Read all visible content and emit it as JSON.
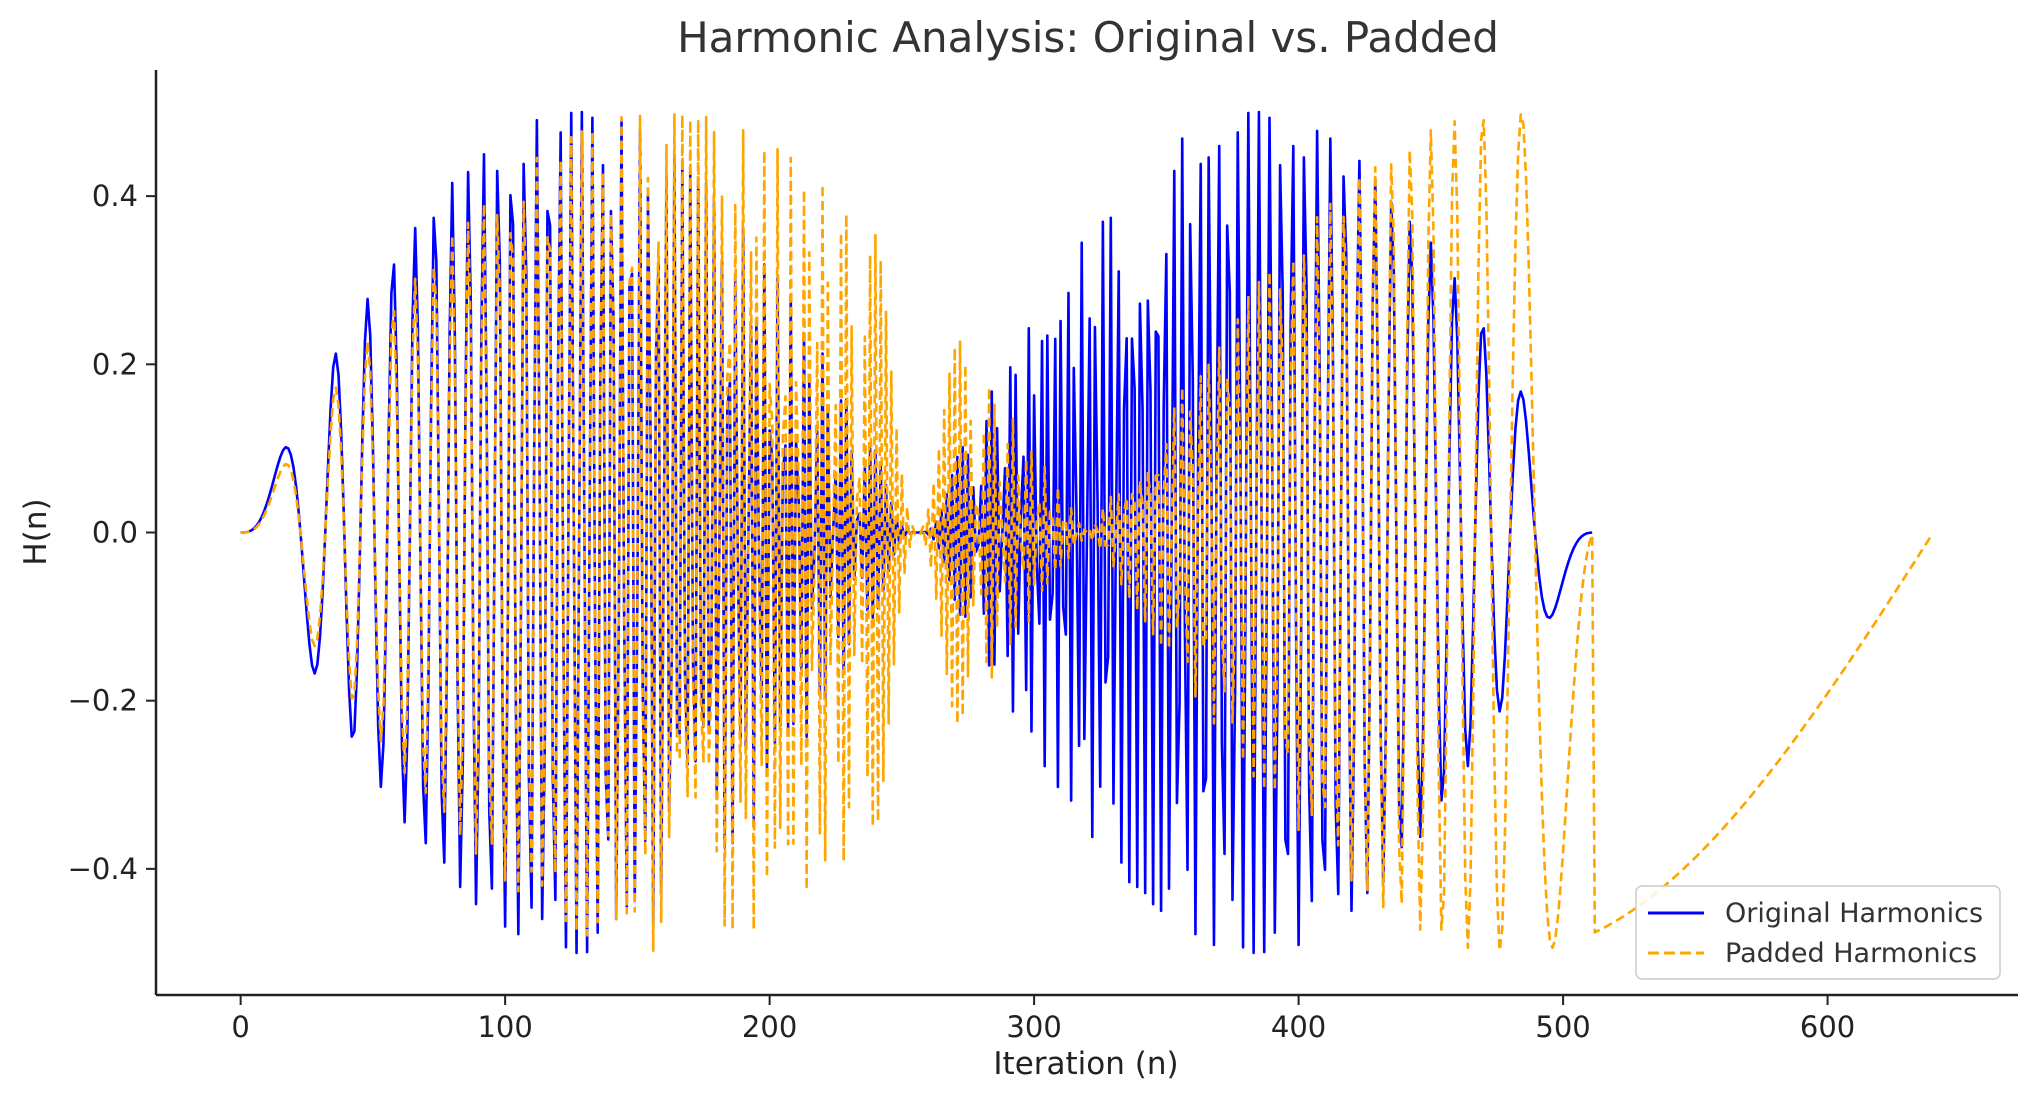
{
  "chart_data": {
    "type": "line",
    "title": "Harmonic Analysis: Original vs. Padded",
    "xlabel": "Iteration (n)",
    "ylabel": "H(n)",
    "xlim": [
      -32,
      672
    ],
    "ylim": [
      -0.55,
      0.55
    ],
    "x_ticks": [
      0,
      100,
      200,
      300,
      400,
      500,
      600
    ],
    "x_tick_labels": [
      "0",
      "100",
      "200",
      "300",
      "400",
      "500",
      "600"
    ],
    "y_ticks": [
      -0.4,
      -0.2,
      0.0,
      0.2,
      0.4
    ],
    "y_tick_labels": [
      "−0.4",
      "−0.2",
      "0.0",
      "0.2",
      "0.4"
    ],
    "grid": false,
    "legend_position": "lower-right",
    "series": [
      {
        "name": "Original Harmonics",
        "color": "#0000ff",
        "style": "solid",
        "n_points": 512,
        "x_range": [
          0,
          511
        ],
        "formula": "H(n) = 0.5 * sin(pi*n/256) * sin(pi*n^2/512)"
      },
      {
        "name": "Padded Harmonics",
        "color": "#ffa500",
        "style": "dashed",
        "n_points": 640,
        "x_range": [
          0,
          639
        ],
        "formula": "H(n) = 0.5 * sin(pi*n/320) * sin(pi*n^2/512) for n < 512; 0.5 * sin(pi*n/320) for n >= 512"
      }
    ]
  }
}
